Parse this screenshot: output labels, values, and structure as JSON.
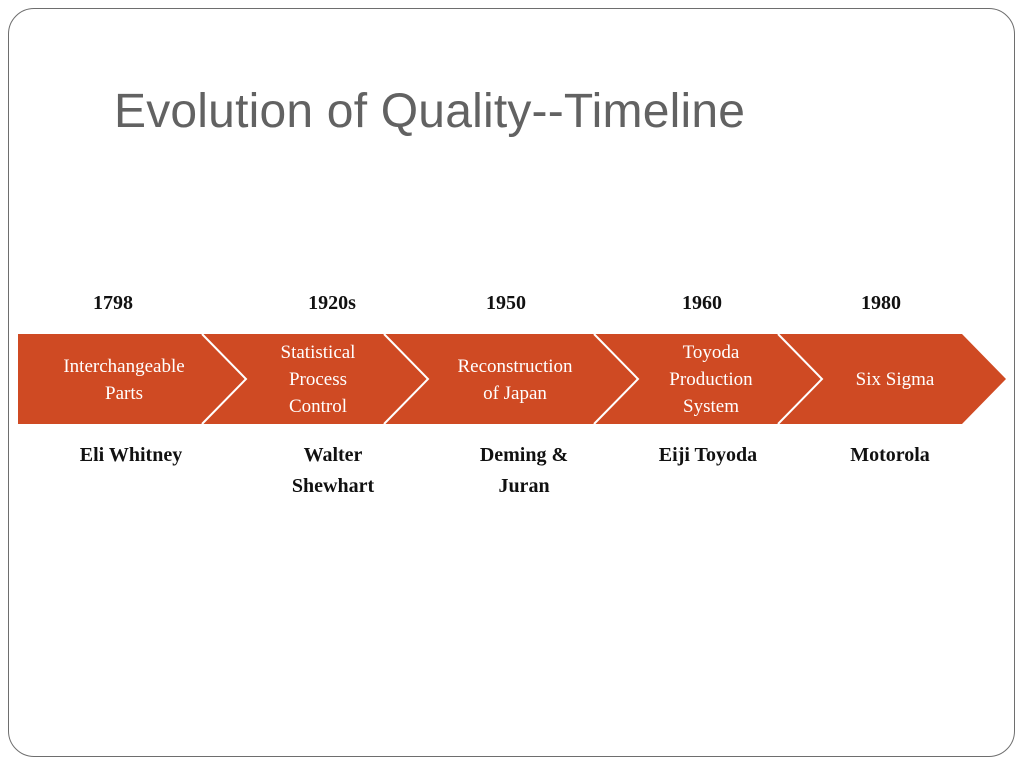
{
  "title": "Evolution of Quality--Timeline",
  "colors": {
    "arrow_fill": "#cf4a23",
    "separator": "#ffffff",
    "title": "#626262"
  },
  "timeline": [
    {
      "year": "1798",
      "label_lines": [
        "Interchangeable",
        "Parts"
      ],
      "person_lines": [
        "Eli Whitney"
      ]
    },
    {
      "year": "1920s",
      "label_lines": [
        "Statistical",
        "Process",
        "Control"
      ],
      "person_lines": [
        "Walter",
        "Shewhart"
      ]
    },
    {
      "year": "1950",
      "label_lines": [
        "Reconstruction",
        "of Japan"
      ],
      "person_lines": [
        "Deming &",
        "Juran"
      ]
    },
    {
      "year": "1960",
      "label_lines": [
        "Toyoda",
        "Production",
        "System"
      ],
      "person_lines": [
        "Eiji Toyoda"
      ]
    },
    {
      "year": "1980",
      "label_lines": [
        "Six Sigma"
      ],
      "person_lines": [
        "Motorola"
      ]
    }
  ]
}
